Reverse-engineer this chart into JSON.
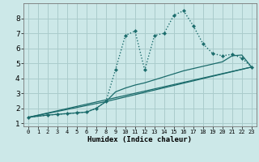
{
  "xlabel": "Humidex (Indice chaleur)",
  "bg_color": "#cce8e8",
  "grid_color": "#aacccc",
  "line_color": "#1a6b6b",
  "xlim": [
    -0.5,
    23.5
  ],
  "ylim": [
    0.8,
    9.0
  ],
  "xticks": [
    0,
    1,
    2,
    3,
    4,
    5,
    6,
    7,
    8,
    9,
    10,
    11,
    12,
    13,
    14,
    15,
    16,
    17,
    18,
    19,
    20,
    21,
    22,
    23
  ],
  "yticks": [
    1,
    2,
    3,
    4,
    5,
    6,
    7,
    8
  ],
  "series": [
    {
      "x": [
        0,
        2,
        3,
        4,
        5,
        6,
        7,
        8,
        9,
        10,
        11,
        12,
        13,
        14,
        15,
        16,
        17,
        18,
        19,
        20,
        21,
        22,
        23
      ],
      "y": [
        1.4,
        1.55,
        1.6,
        1.65,
        1.7,
        1.75,
        2.0,
        2.45,
        4.6,
        6.85,
        7.15,
        4.55,
        6.85,
        7.0,
        8.2,
        8.5,
        7.5,
        6.3,
        5.65,
        5.5,
        5.6,
        5.35,
        4.75
      ],
      "linestyle": "dotted",
      "marker": "D",
      "markersize": 2.2,
      "linewidth": 1.0
    },
    {
      "x": [
        0,
        2,
        3,
        4,
        5,
        6,
        7,
        8,
        9,
        10,
        11,
        12,
        13,
        14,
        15,
        16,
        17,
        18,
        19,
        20,
        21,
        22,
        23
      ],
      "y": [
        1.4,
        1.55,
        1.6,
        1.65,
        1.7,
        1.75,
        2.0,
        2.45,
        3.1,
        3.35,
        3.55,
        3.7,
        3.9,
        4.1,
        4.3,
        4.5,
        4.65,
        4.8,
        4.95,
        5.1,
        5.5,
        5.55,
        4.75
      ],
      "linestyle": "solid",
      "marker": null,
      "markersize": 0,
      "linewidth": 0.9
    },
    {
      "x": [
        0,
        23
      ],
      "y": [
        1.4,
        4.75
      ],
      "linestyle": "solid",
      "marker": null,
      "markersize": 0,
      "linewidth": 0.9
    },
    {
      "x": [
        0,
        8,
        23
      ],
      "y": [
        1.4,
        2.45,
        4.75
      ],
      "linestyle": "solid",
      "marker": null,
      "markersize": 0,
      "linewidth": 0.9
    }
  ]
}
